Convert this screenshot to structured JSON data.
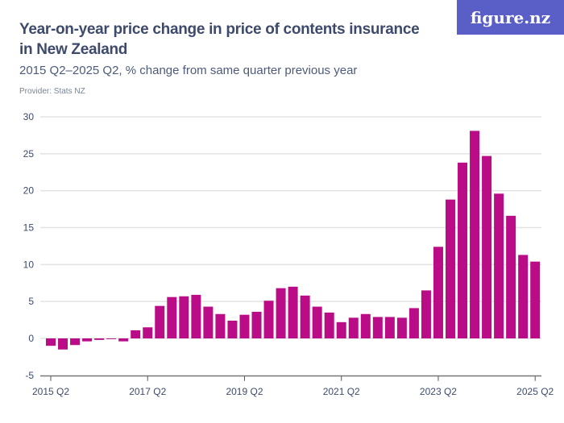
{
  "title": "Year-on-year price change in price of contents insurance in New Zealand",
  "subtitle": "2015 Q2–2025 Q2, % change from same quarter previous year",
  "provider": "Provider: Stats NZ",
  "logo": "figure.nz",
  "chart_data": {
    "type": "bar",
    "color": "#b90c86",
    "ylim": [
      -5,
      30
    ],
    "yticks": [
      -5,
      0,
      5,
      10,
      15,
      20,
      25,
      30
    ],
    "ytick_labels": [
      "-5",
      "0",
      "5",
      "10",
      "15",
      "20",
      "25",
      "30"
    ],
    "xtick_labels": [
      "2015 Q2",
      "2017 Q2",
      "2019 Q2",
      "2021 Q2",
      "2023 Q2",
      "2025 Q2"
    ],
    "grid": true,
    "categories": [
      "2015 Q2",
      "2015 Q3",
      "2015 Q4",
      "2016 Q1",
      "2016 Q2",
      "2016 Q3",
      "2016 Q4",
      "2017 Q1",
      "2017 Q2",
      "2017 Q3",
      "2017 Q4",
      "2018 Q1",
      "2018 Q2",
      "2018 Q3",
      "2018 Q4",
      "2019 Q1",
      "2019 Q2",
      "2019 Q3",
      "2019 Q4",
      "2020 Q1",
      "2020 Q2",
      "2020 Q3",
      "2020 Q4",
      "2021 Q1",
      "2021 Q2",
      "2021 Q3",
      "2021 Q4",
      "2022 Q1",
      "2022 Q2",
      "2022 Q3",
      "2022 Q4",
      "2023 Q1",
      "2023 Q2",
      "2023 Q3",
      "2023 Q4",
      "2024 Q1",
      "2024 Q2",
      "2024 Q3",
      "2024 Q4",
      "2025 Q1",
      "2025 Q2"
    ],
    "values": [
      -1.0,
      -1.5,
      -0.9,
      -0.4,
      -0.2,
      -0.1,
      -0.4,
      1.1,
      1.5,
      4.4,
      5.6,
      5.7,
      5.9,
      4.3,
      3.3,
      2.4,
      3.2,
      3.6,
      5.1,
      6.8,
      7.0,
      5.8,
      4.3,
      3.5,
      2.2,
      2.8,
      3.3,
      2.9,
      2.9,
      2.8,
      4.1,
      6.5,
      12.4,
      18.8,
      23.8,
      28.1,
      24.7,
      19.6,
      16.6,
      11.3,
      10.4
    ]
  }
}
